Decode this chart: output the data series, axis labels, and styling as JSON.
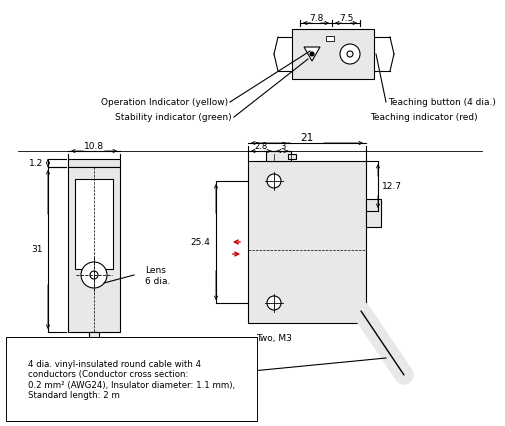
{
  "bg_color": "#ffffff",
  "line_color": "#000000",
  "red_color": "#cc0000",
  "gray_fill": "#e8e8e8",
  "annotations": {
    "op_indicator": "Operation Indicator (yellow)",
    "stab_indicator": "Stability indicator (green)",
    "teach_button": "Teaching button (4 dia.)",
    "teach_indicator": "Teaching indicator (red)",
    "lens_label": "Lens\n6 dia.",
    "two_m3": "Two, M3",
    "cable_note": "4 dia. vinyl-insulated round cable with 4\nconductors (Conductor cross section:\n0.2 mm² (AWG24), Insulator diameter: 1.1 mm),\nStandard length: 2 m",
    "dim_78": "7.8",
    "dim_75": "7.5",
    "dim_108": "10.8",
    "dim_12": "1.2",
    "dim_31": "31",
    "dim_21": "21",
    "dim_28": "2.8",
    "dim_3": "3",
    "dim_127": "12.7",
    "dim_254": "25.4"
  }
}
